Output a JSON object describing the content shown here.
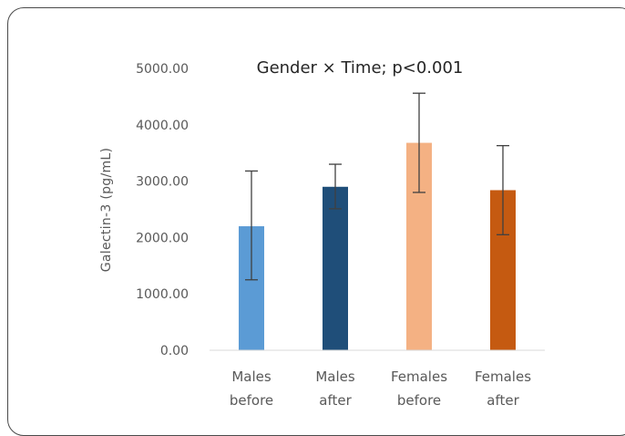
{
  "chart_data": {
    "type": "bar",
    "title": "Gender × Time; p<0.001",
    "xlabel": "",
    "ylabel": "Galectin-3 (pg/mL)",
    "ylim": [
      0,
      5000
    ],
    "yticks": [
      "0.00",
      "1000.00",
      "2000.00",
      "3000.00",
      "4000.00",
      "5000.00"
    ],
    "grid": false,
    "legend": "none",
    "categories": [
      [
        "Males",
        "before"
      ],
      [
        "Males",
        "after"
      ],
      [
        "Females",
        "before"
      ],
      [
        "Females",
        "after"
      ]
    ],
    "values": [
      2200,
      2900,
      3680,
      2840
    ],
    "error_bars": [
      [
        1250,
        3180
      ],
      [
        2510,
        3300
      ],
      [
        2800,
        4560
      ],
      [
        2050,
        3630
      ]
    ],
    "colors": [
      "#5b9bd5",
      "#1f4e79",
      "#f4b183",
      "#c55a11"
    ]
  }
}
